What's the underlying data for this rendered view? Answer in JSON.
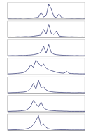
{
  "chart_data": [
    {
      "type": "line",
      "x": [
        0,
        2,
        4,
        6,
        8,
        10,
        12,
        14,
        16,
        18,
        20,
        22,
        24,
        26,
        28,
        30,
        32,
        34,
        36,
        38,
        40,
        42,
        44,
        46,
        48,
        50,
        52,
        54,
        56,
        58,
        60
      ],
      "series": [
        {
          "color": "#2a2f6e",
          "values": [
            4,
            4,
            5,
            4,
            5,
            4,
            6,
            5,
            4,
            5,
            6,
            8,
            10,
            40,
            12,
            20,
            90,
            60,
            15,
            8,
            30,
            9,
            6,
            5,
            5,
            4,
            5,
            4,
            4,
            5,
            4
          ]
        }
      ],
      "xlim": [
        0,
        60
      ],
      "ylim": [
        0,
        100
      ],
      "tick_labels": false
    },
    {
      "type": "line",
      "x": [
        0,
        2,
        4,
        6,
        8,
        10,
        12,
        14,
        16,
        18,
        20,
        22,
        24,
        26,
        28,
        30,
        32,
        34,
        36,
        38,
        40,
        42,
        44,
        46,
        48,
        50,
        52,
        54,
        56,
        58,
        60
      ],
      "series": [
        {
          "color": "#2a2f6e",
          "values": [
            3,
            4,
            3,
            4,
            5,
            4,
            5,
            6,
            5,
            6,
            8,
            10,
            12,
            15,
            50,
            20,
            80,
            25,
            18,
            40,
            10,
            7,
            6,
            5,
            4,
            5,
            4,
            4,
            3,
            4,
            3
          ]
        }
      ],
      "xlim": [
        0,
        60
      ],
      "ylim": [
        0,
        100
      ],
      "tick_labels": false
    },
    {
      "type": "line",
      "x": [
        0,
        2,
        4,
        6,
        8,
        10,
        12,
        14,
        16,
        18,
        20,
        22,
        24,
        26,
        28,
        30,
        32,
        34,
        36,
        38,
        40,
        42,
        44,
        46,
        48,
        50,
        52,
        54,
        56,
        58,
        60
      ],
      "series": [
        {
          "color": "#2a2f6e",
          "values": [
            3,
            3,
            4,
            3,
            4,
            5,
            4,
            5,
            6,
            7,
            9,
            12,
            15,
            25,
            60,
            18,
            70,
            22,
            12,
            9,
            7,
            6,
            5,
            5,
            4,
            4,
            3,
            4,
            3,
            3,
            3
          ]
        }
      ],
      "xlim": [
        0,
        60
      ],
      "ylim": [
        0,
        100
      ],
      "tick_labels": false
    },
    {
      "type": "line",
      "x": [
        0,
        2,
        4,
        6,
        8,
        10,
        12,
        14,
        16,
        18,
        20,
        22,
        24,
        26,
        28,
        30,
        32,
        34,
        36,
        38,
        40,
        42,
        44,
        46,
        48,
        50,
        52,
        54,
        56,
        58,
        60
      ],
      "series": [
        {
          "color": "#2a2f6e",
          "values": [
            5,
            5,
            6,
            7,
            8,
            10,
            12,
            20,
            35,
            60,
            45,
            90,
            70,
            50,
            65,
            40,
            30,
            25,
            20,
            15,
            12,
            10,
            9,
            20,
            8,
            7,
            6,
            6,
            5,
            5,
            5
          ]
        }
      ],
      "xlim": [
        0,
        60
      ],
      "ylim": [
        0,
        100
      ],
      "tick_labels": false
    },
    {
      "type": "line",
      "x": [
        0,
        2,
        4,
        6,
        8,
        10,
        12,
        14,
        16,
        18,
        20,
        22,
        24,
        26,
        28,
        30,
        32,
        34,
        36,
        38,
        40,
        42,
        44,
        46,
        48,
        50,
        52,
        54,
        56,
        58,
        60
      ],
      "series": [
        {
          "color": "#2a2f6e",
          "values": [
            3,
            3,
            4,
            4,
            5,
            6,
            7,
            9,
            15,
            30,
            60,
            25,
            80,
            35,
            40,
            20,
            12,
            9,
            7,
            6,
            5,
            5,
            4,
            4,
            4,
            3,
            3,
            3,
            4,
            3,
            3
          ]
        }
      ],
      "xlim": [
        0,
        60
      ],
      "ylim": [
        0,
        100
      ],
      "tick_labels": false
    },
    {
      "type": "line",
      "x": [
        0,
        2,
        4,
        6,
        8,
        10,
        12,
        14,
        16,
        18,
        20,
        22,
        24,
        26,
        28,
        30,
        32,
        34,
        36,
        38,
        40,
        42,
        44,
        46,
        48,
        50,
        52,
        54,
        56,
        58,
        60
      ],
      "series": [
        {
          "color": "#2a2f6e",
          "values": [
            3,
            3,
            4,
            4,
            5,
            6,
            8,
            10,
            18,
            35,
            70,
            50,
            30,
            60,
            25,
            15,
            10,
            8,
            7,
            6,
            5,
            5,
            4,
            4,
            3,
            3,
            3,
            3,
            3,
            3,
            3
          ]
        }
      ],
      "xlim": [
        0,
        60
      ],
      "ylim": [
        0,
        100
      ],
      "tick_labels": false
    },
    {
      "type": "line",
      "x": [
        0,
        2,
        4,
        6,
        8,
        10,
        12,
        14,
        16,
        18,
        20,
        22,
        24,
        26,
        28,
        30,
        32,
        34,
        36,
        38,
        40,
        42,
        44,
        46,
        48,
        50,
        52,
        54,
        56,
        58,
        60
      ],
      "series": [
        {
          "color": "#2a2f6e",
          "values": [
            3,
            3,
            4,
            4,
            5,
            6,
            7,
            9,
            12,
            20,
            35,
            60,
            90,
            30,
            40,
            18,
            10,
            8,
            6,
            5,
            5,
            4,
            4,
            4,
            3,
            3,
            3,
            3,
            3,
            3,
            3
          ]
        }
      ],
      "xlim": [
        0,
        60
      ],
      "ylim": [
        0,
        100
      ],
      "tick_labels": false
    }
  ]
}
